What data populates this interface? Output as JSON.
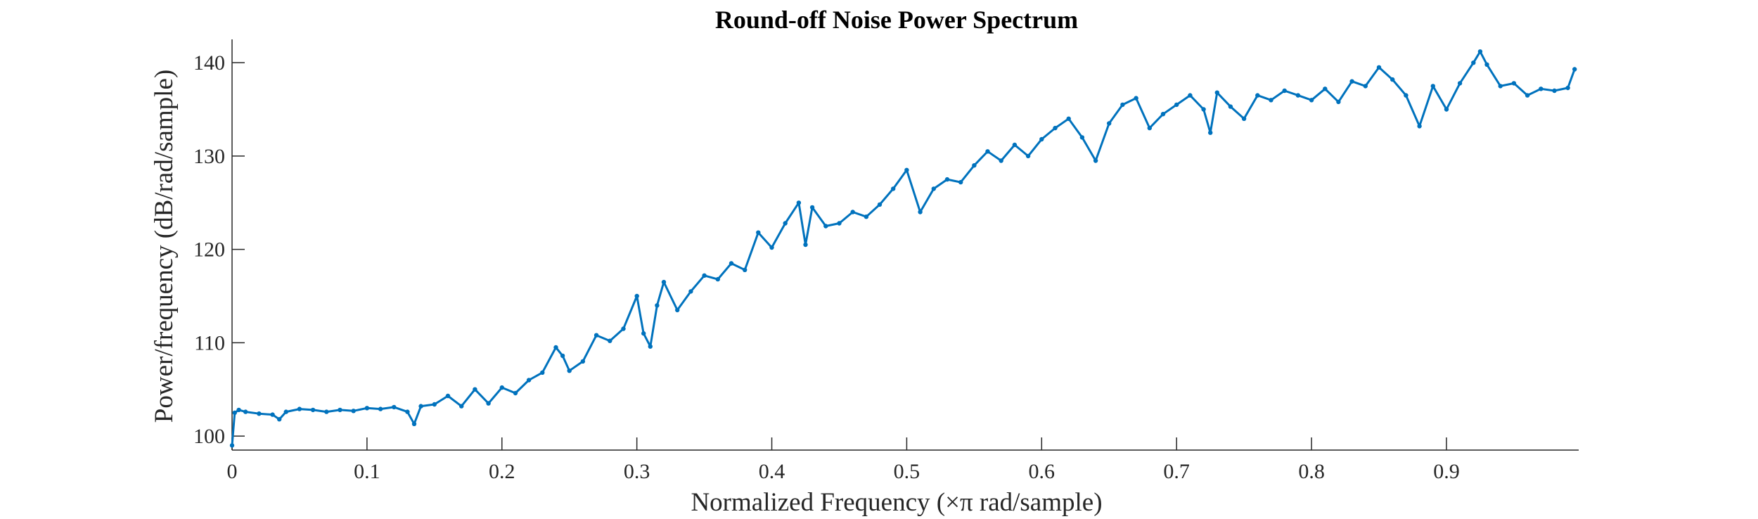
{
  "chart_data": {
    "type": "line",
    "title": "Round-off Noise Power Spectrum",
    "xlabel": "Normalized Frequency (×π rad/sample)",
    "ylabel": "Power/frequency (dB/rad/sample)",
    "xlim": [
      0,
      0.998
    ],
    "ylim": [
      98.5,
      142.5
    ],
    "xticks": [
      0,
      0.1,
      0.2,
      0.3,
      0.4,
      0.5,
      0.6,
      0.7,
      0.8,
      0.9
    ],
    "xtick_labels": [
      "0",
      "0.1",
      "0.2",
      "0.3",
      "0.4",
      "0.5",
      "0.6",
      "0.7",
      "0.8",
      "0.9"
    ],
    "yticks": [
      100,
      110,
      120,
      130,
      140
    ],
    "ytick_labels": [
      "100",
      "110",
      "120",
      "130",
      "140"
    ],
    "grid": false,
    "line_color": "#0072BD",
    "series": [
      {
        "marker": "dot",
        "x": [
          0,
          0.002,
          0.005,
          0.01,
          0.02,
          0.03,
          0.035,
          0.04,
          0.05,
          0.06,
          0.07,
          0.08,
          0.09,
          0.1,
          0.11,
          0.12,
          0.13,
          0.135,
          0.14,
          0.15,
          0.16,
          0.17,
          0.18,
          0.19,
          0.2,
          0.21,
          0.22,
          0.23,
          0.24,
          0.245,
          0.25,
          0.26,
          0.27,
          0.28,
          0.29,
          0.3,
          0.305,
          0.31,
          0.315,
          0.32,
          0.33,
          0.34,
          0.35,
          0.36,
          0.37,
          0.38,
          0.39,
          0.4,
          0.41,
          0.42,
          0.425,
          0.43,
          0.44,
          0.45,
          0.46,
          0.47,
          0.48,
          0.49,
          0.5,
          0.51,
          0.52,
          0.53,
          0.54,
          0.55,
          0.56,
          0.57,
          0.58,
          0.59,
          0.6,
          0.61,
          0.62,
          0.63,
          0.64,
          0.65,
          0.66,
          0.67,
          0.68,
          0.69,
          0.7,
          0.71,
          0.72,
          0.725,
          0.73,
          0.74,
          0.75,
          0.76,
          0.77,
          0.78,
          0.79,
          0.8,
          0.81,
          0.82,
          0.83,
          0.84,
          0.85,
          0.86,
          0.87,
          0.88,
          0.89,
          0.9,
          0.91,
          0.92,
          0.925,
          0.93,
          0.94,
          0.95,
          0.96,
          0.97,
          0.98,
          0.99,
          0.995
        ],
        "y": [
          99.0,
          102.5,
          102.8,
          102.6,
          102.4,
          102.3,
          101.8,
          102.6,
          102.9,
          102.8,
          102.6,
          102.8,
          102.7,
          103.0,
          102.9,
          103.1,
          102.6,
          101.3,
          103.2,
          103.4,
          104.3,
          103.2,
          105.0,
          103.5,
          105.2,
          104.6,
          106.0,
          106.8,
          109.5,
          108.6,
          107.0,
          108.0,
          110.8,
          110.2,
          111.5,
          115.0,
          111.0,
          109.6,
          114.0,
          116.5,
          113.5,
          115.5,
          117.2,
          116.8,
          118.5,
          117.8,
          121.8,
          120.2,
          122.8,
          125.0,
          120.5,
          124.5,
          122.5,
          122.8,
          124.0,
          123.5,
          124.8,
          126.5,
          128.5,
          124.0,
          126.5,
          127.5,
          127.2,
          129.0,
          130.5,
          129.5,
          131.2,
          130.0,
          131.8,
          133.0,
          134.0,
          132.0,
          129.5,
          133.5,
          135.5,
          136.2,
          133.0,
          134.5,
          135.5,
          136.5,
          135.0,
          132.5,
          136.8,
          135.3,
          134.0,
          136.5,
          136.0,
          137.0,
          136.5,
          136.0,
          137.2,
          135.8,
          138.0,
          137.5,
          139.5,
          138.2,
          136.5,
          133.2,
          137.5,
          135.0,
          137.8,
          140.0,
          141.2,
          139.8,
          137.5,
          137.8,
          136.5,
          137.2,
          137.0,
          137.3,
          139.3
        ]
      }
    ]
  }
}
